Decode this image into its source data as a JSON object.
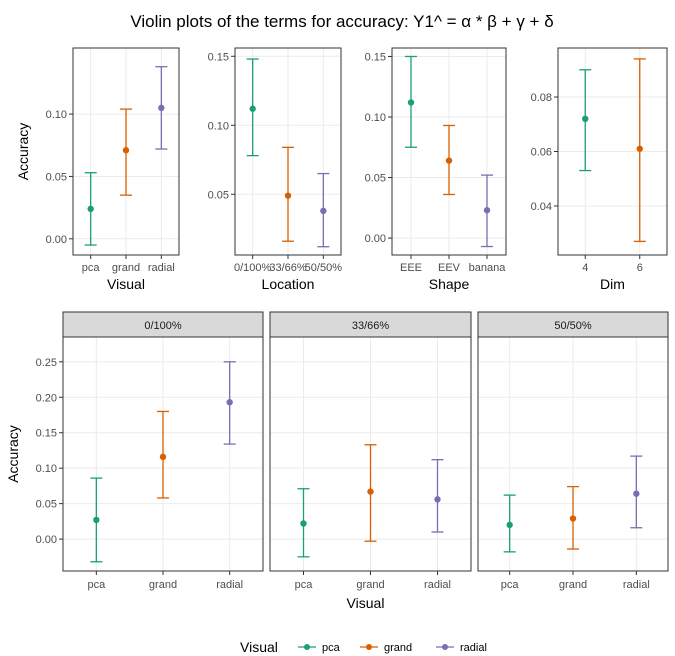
{
  "title": "Violin plots of the terms for accuracy: Y1^ = α * β + γ + δ",
  "legend": {
    "title": "Visual",
    "position": "bottom",
    "items": [
      {
        "label": "pca",
        "color": "#1B9E77"
      },
      {
        "label": "grand",
        "color": "#D95F02"
      },
      {
        "label": "radial",
        "color": "#7570B3"
      }
    ]
  },
  "chart_data": [
    {
      "type": "errorbar",
      "xlabel": "Visual",
      "ylabel": "Accuracy",
      "categories": [
        "pca",
        "grand",
        "radial"
      ],
      "ylim": [
        -0.013,
        0.153
      ],
      "yticks": [
        0.0,
        0.05,
        0.1
      ],
      "ytick_labels": [
        "0.00",
        "0.05",
        "0.10"
      ],
      "grid": true,
      "points": [
        {
          "mean": 0.024,
          "low": -0.005,
          "high": 0.053,
          "color": "#1B9E77"
        },
        {
          "mean": 0.071,
          "low": 0.035,
          "high": 0.104,
          "color": "#D95F02"
        },
        {
          "mean": 0.105,
          "low": 0.072,
          "high": 0.138,
          "color": "#7570B3"
        }
      ]
    },
    {
      "type": "errorbar",
      "xlabel": "Location",
      "ylabel": "",
      "categories": [
        "0/100%",
        "33/66%",
        "50/50%"
      ],
      "ylim": [
        0.006,
        0.156
      ],
      "yticks": [
        0.05,
        0.1,
        0.15
      ],
      "ytick_labels": [
        "0.05",
        "0.10",
        "0.15"
      ],
      "grid": true,
      "points": [
        {
          "mean": 0.112,
          "low": 0.078,
          "high": 0.148,
          "color": "#1B9E77"
        },
        {
          "mean": 0.049,
          "low": 0.016,
          "high": 0.084,
          "color": "#D95F02"
        },
        {
          "mean": 0.038,
          "low": 0.012,
          "high": 0.065,
          "color": "#7570B3"
        }
      ]
    },
    {
      "type": "errorbar",
      "xlabel": "Shape",
      "ylabel": "",
      "categories": [
        "EEE",
        "EEV",
        "banana"
      ],
      "ylim": [
        -0.014,
        0.157
      ],
      "yticks": [
        0.0,
        0.05,
        0.1,
        0.15
      ],
      "ytick_labels": [
        "0.00",
        "0.05",
        "0.10",
        "0.15"
      ],
      "grid": true,
      "points": [
        {
          "mean": 0.112,
          "low": 0.075,
          "high": 0.15,
          "color": "#1B9E77"
        },
        {
          "mean": 0.064,
          "low": 0.036,
          "high": 0.093,
          "color": "#D95F02"
        },
        {
          "mean": 0.023,
          "low": -0.007,
          "high": 0.052,
          "color": "#7570B3"
        }
      ]
    },
    {
      "type": "errorbar",
      "xlabel": "Dim",
      "ylabel": "",
      "categories": [
        "4",
        "6"
      ],
      "ylim": [
        0.022,
        0.098
      ],
      "yticks": [
        0.04,
        0.06,
        0.08
      ],
      "ytick_labels": [
        "0.04",
        "0.06",
        "0.08"
      ],
      "grid": true,
      "points": [
        {
          "mean": 0.072,
          "low": 0.053,
          "high": 0.09,
          "color": "#1B9E77"
        },
        {
          "mean": 0.061,
          "low": 0.027,
          "high": 0.094,
          "color": "#D95F02"
        }
      ]
    },
    {
      "type": "errorbar-faceted",
      "xlabel": "Visual",
      "ylabel": "Accuracy",
      "categories": [
        "pca",
        "grand",
        "radial"
      ],
      "ylim": [
        -0.045,
        0.285
      ],
      "yticks": [
        0.0,
        0.05,
        0.1,
        0.15,
        0.2,
        0.25
      ],
      "ytick_labels": [
        "0.00",
        "0.05",
        "0.10",
        "0.15",
        "0.20",
        "0.25"
      ],
      "grid": true,
      "facets": [
        {
          "label": "0/100%",
          "points": [
            {
              "mean": 0.027,
              "low": -0.032,
              "high": 0.086,
              "color": "#1B9E77"
            },
            {
              "mean": 0.116,
              "low": 0.058,
              "high": 0.18,
              "color": "#D95F02"
            },
            {
              "mean": 0.193,
              "low": 0.134,
              "high": 0.25,
              "color": "#7570B3"
            }
          ]
        },
        {
          "label": "33/66%",
          "points": [
            {
              "mean": 0.022,
              "low": -0.025,
              "high": 0.071,
              "color": "#1B9E77"
            },
            {
              "mean": 0.067,
              "low": -0.003,
              "high": 0.133,
              "color": "#D95F02"
            },
            {
              "mean": 0.056,
              "low": 0.01,
              "high": 0.112,
              "color": "#7570B3"
            }
          ]
        },
        {
          "label": "50/50%",
          "points": [
            {
              "mean": 0.02,
              "low": -0.018,
              "high": 0.062,
              "color": "#1B9E77"
            },
            {
              "mean": 0.029,
              "low": -0.014,
              "high": 0.074,
              "color": "#D95F02"
            },
            {
              "mean": 0.064,
              "low": 0.016,
              "high": 0.117,
              "color": "#7570B3"
            }
          ]
        }
      ]
    }
  ]
}
